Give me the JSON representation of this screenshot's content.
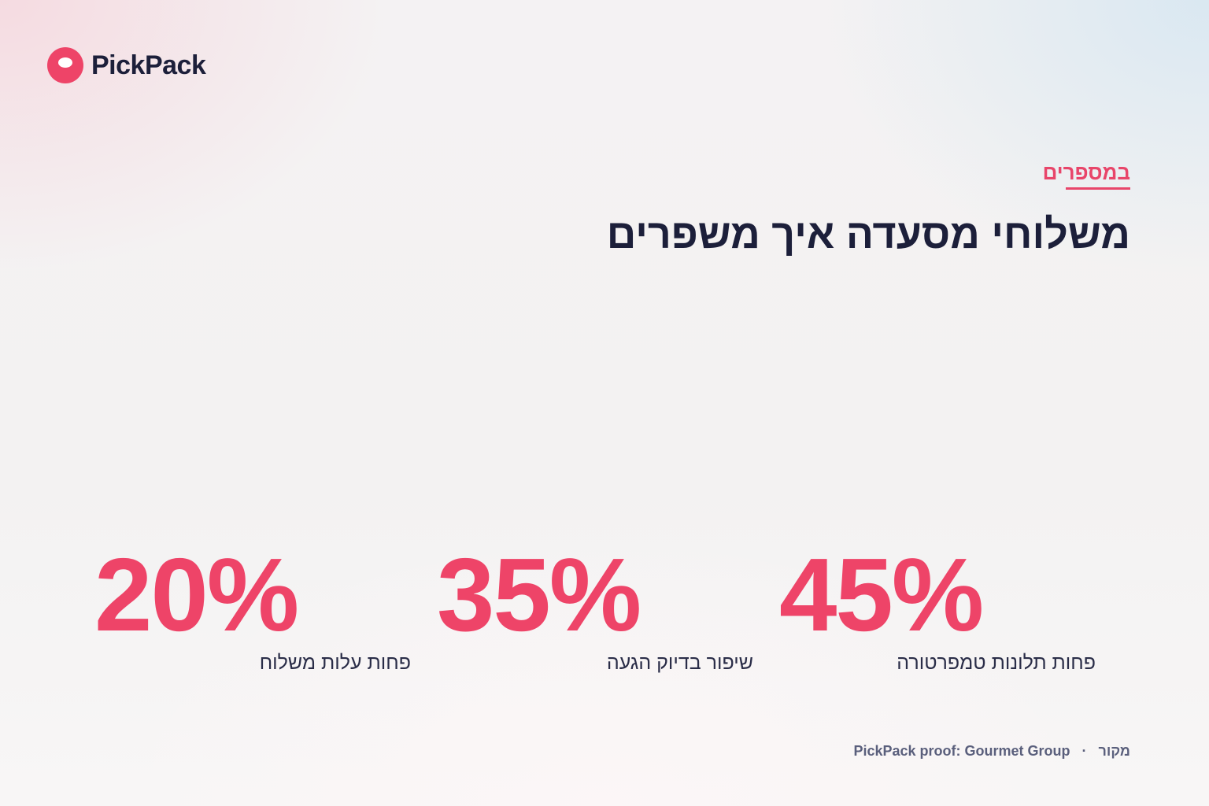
{
  "brand": {
    "name": "PickPack",
    "accent_color": "#ee4468",
    "ink_color": "#1c1f3a",
    "logo_icon": "pickpack-logo-icon"
  },
  "header": {
    "eyebrow": "במספרים",
    "title": "משלוחי מסעדה איך משפרים"
  },
  "stats": [
    {
      "value": "45%",
      "label": "פחות תלונות טמפרטורה"
    },
    {
      "value": "35%",
      "label": "שיפור בדיוק הגעה"
    },
    {
      "value": "20%",
      "label": "פחות עלות משלוח"
    }
  ],
  "footer": {
    "source_label": "מקור",
    "separator": "·",
    "source_text": "PickPack proof: Gourmet Group"
  }
}
